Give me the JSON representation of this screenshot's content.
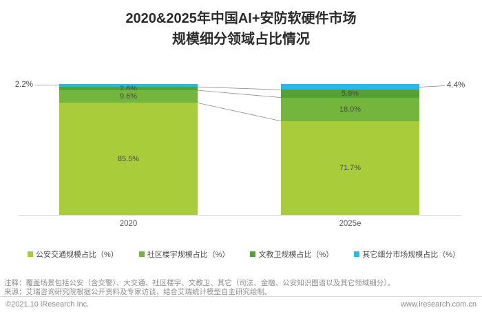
{
  "title": {
    "line1": "2020&2025年中国AI+安防软硬件市场",
    "line2": "规模细分领域占比情况"
  },
  "chart_data": {
    "type": "bar",
    "subtype": "stacked-100-percent",
    "categories": [
      "2020",
      "2025e"
    ],
    "series": [
      {
        "name": "公安交通规模占比（%）",
        "color": "#a9cc3b",
        "values": [
          85.5,
          71.7
        ]
      },
      {
        "name": "社区楼宇规模占比（%）",
        "color": "#74b53d",
        "values": [
          9.6,
          18.0
        ]
      },
      {
        "name": "文教卫规模占比（%）",
        "color": "#52a234",
        "values": [
          2.6,
          5.9
        ]
      },
      {
        "name": "其它细分市场规模占比（%）",
        "color": "#2bb8e4",
        "values": [
          2.2,
          4.4
        ]
      }
    ],
    "value_labels": {
      "2020": [
        "85.5%",
        "9.6%",
        "2.6%",
        "2.2%"
      ],
      "2025e": [
        "71.7%",
        "18.0%",
        "5.9%",
        "4.4%"
      ]
    },
    "ylim": [
      0,
      100
    ],
    "grid": false,
    "legend_position": "bottom"
  },
  "notes": {
    "annotation": "注释：覆盖场景包括公安（含交警）、大交通、社区楼宇、文教卫、其它（司法、金融、公安知识图谱以及其它领域细分）。",
    "source": "来源：艾瑞咨询研究院根据公开资料及专家访谈，结合艾瑞统计模型自主研究绘制。"
  },
  "footer": {
    "left": "©2021.10 iResearch Inc.",
    "right": "www.iresearch.com.cn"
  },
  "colors": {
    "axis": "#d6d6d6",
    "connector": "#8f8f8f",
    "title_text": "#2b2b2b",
    "value_text": "#4a4a4a",
    "note_text": "#8c8c8c",
    "footer_text": "#8a8a8a"
  }
}
